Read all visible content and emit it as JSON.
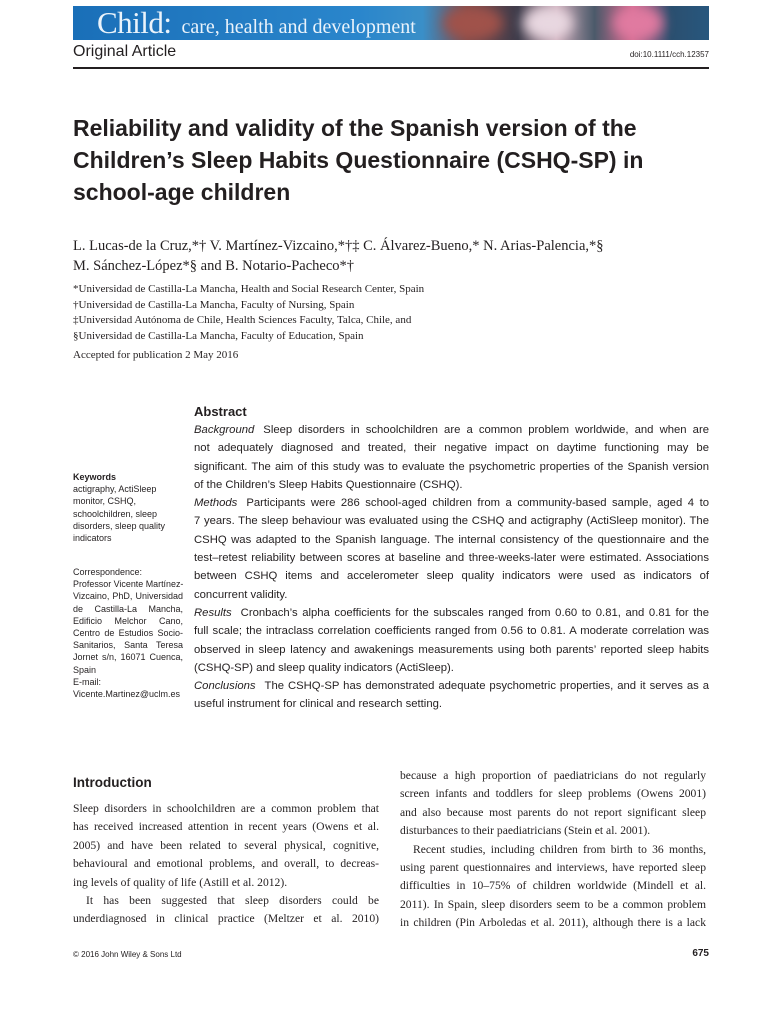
{
  "journal": {
    "name": "Child:",
    "subtitle": "care, health and development",
    "brand_color": "#1f78c1"
  },
  "header": {
    "section": "Original Article",
    "doi": "doi:10.1111/cch.12357"
  },
  "title_lines": [
    "Reliability and validity of the Spanish version of the",
    "Children’s Sleep Habits Questionnaire (CSHQ-SP) in",
    "school-age children"
  ],
  "authors": [
    "L. Lucas-de la Cruz,*† V. Martínez-Vizcaino,*†‡ C. Álvarez-Bueno,* N. Arias-Palencia,*§",
    "M. Sánchez-López*§ and B. Notario-Pacheco*†"
  ],
  "affiliations": [
    "*Universidad de Castilla-La Mancha, Health and Social Research Center, Spain",
    "†Universidad de Castilla-La Mancha, Faculty of Nursing, Spain",
    "‡Universidad Autónoma de Chile, Health Sciences Faculty, Talca, Chile, and",
    "§Universidad de Castilla-La Mancha, Faculty of Education, Spain"
  ],
  "accepted": "Accepted for publication 2 May 2016",
  "keywords": {
    "heading": "Keywords",
    "lines": [
      "actigraphy, ActiSleep",
      "monitor, CSHQ,",
      "schoolchildren, sleep",
      "disorders, sleep quality",
      "indicators"
    ]
  },
  "correspondence": {
    "heading": "Correspondence:",
    "lines": [
      "Professor Vicente Martínez-",
      "Vizcaino, PhD, Universidad",
      "de Castilla-La Mancha,",
      "Edificio Melchor Cano,",
      "Centro de Estudios Socio-",
      "Sanitarios, Santa Teresa",
      "Jornet s/n, 16071 Cuenca,",
      "Spain",
      "E-mail:",
      "Vicente.Martinez@uclm.es"
    ]
  },
  "abstract": {
    "heading": "Abstract",
    "sections": [
      {
        "label": "Background",
        "lines": [
          "Sleep disorders in schoolchildren are a common problem worldwide, and when are",
          "not adequately diagnosed and treated, their negative impact on daytime functioning may be",
          "significant. The aim of this study was to evaluate the psychometric properties of the Spanish version",
          "of the Children’s Sleep Habits Questionnaire (CSHQ)."
        ]
      },
      {
        "label": "Methods",
        "lines": [
          "Participants were 286 school-aged children from a community-based sample, aged 4 to",
          "7 years. The sleep behaviour was evaluated using the CSHQ and actigraphy (ActiSleep monitor). The",
          "CSHQ was adapted to the Spanish language. The internal consistency of the questionnaire and the",
          "test–retest reliability between scores at baseline and three-weeks-later were estimated. Associations",
          "between CSHQ items and accelerometer sleep quality indicators were used as indicators of",
          "concurrent validity."
        ]
      },
      {
        "label": "Results",
        "lines": [
          "Cronbach’s alpha coefficients for the subscales ranged from 0.60 to 0.81, and 0.81 for the",
          "full scale; the intraclass correlation coefficients ranged from 0.56 to 0.81. A moderate correlation was",
          "observed in sleep latency and awakenings measurements using both parents’ reported sleep habits",
          "(CSHQ-SP) and sleep quality indicators (ActiSleep)."
        ]
      },
      {
        "label": "Conclusions",
        "lines": [
          "The CSHQ-SP has demonstrated adequate psychometric properties, and it serves as a",
          "useful instrument for clinical and research setting."
        ]
      }
    ]
  },
  "introduction": {
    "heading": "Introduction",
    "left_paragraphs": [
      [
        "Sleep disorders in schoolchildren are a common problem that",
        "has received increased attention in recent years (Owens et al.",
        "2005) and have been related to several physical, cognitive,",
        "behavioural and emotional problems, and overall, to decreas-",
        "ing levels of quality of life (Astill et al. 2012)."
      ],
      [
        "It has been suggested that sleep disorders could be",
        "underdiagnosed in clinical practice (Meltzer et al. 2010)"
      ]
    ],
    "right_paragraphs": [
      [
        "because a high proportion of paediatricians do not regularly",
        "screen infants and toddlers for sleep problems (Owens 2001)",
        "and also because most parents do not report significant sleep",
        "disturbances to their paediatricians (Stein et al. 2001)."
      ],
      [
        "Recent studies, including children from birth to 36 months,",
        "using parent questionnaires and interviews, have reported sleep",
        "difficulties in 10–75% of children worldwide (Mindell et al.",
        "2011). In Spain, sleep disorders seem to be a common problem",
        "in children (Pin Arboledas et al. 2011), although there is a lack"
      ]
    ]
  },
  "footer": {
    "copyright": "© 2016 John Wiley & Sons Ltd",
    "page": "675"
  }
}
